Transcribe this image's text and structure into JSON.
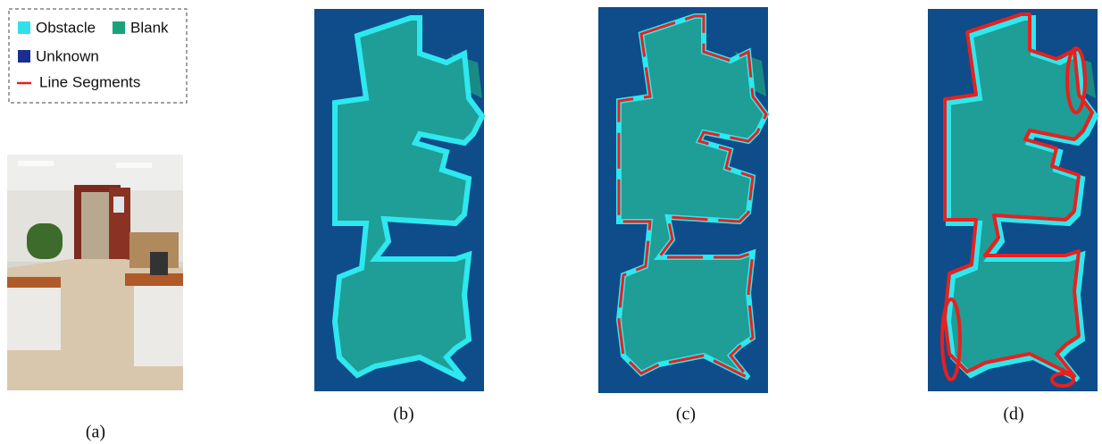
{
  "legend": {
    "items": [
      "Obstacle",
      "Blank",
      "Unknown",
      "Line Segments"
    ]
  },
  "panels": [
    {
      "caption": "(a)"
    },
    {
      "caption": "(b)"
    },
    {
      "caption": "(c)"
    },
    {
      "caption": "(d)"
    }
  ]
}
